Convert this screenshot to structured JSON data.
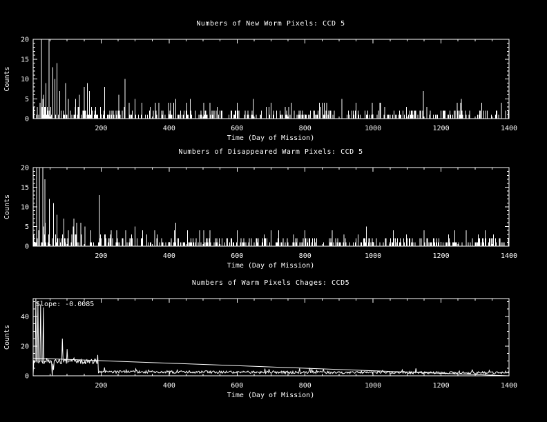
{
  "window": {
    "background_color": "#000000",
    "foreground_color": "#ffffff"
  },
  "chart_data": [
    {
      "type": "bar",
      "title": "Numbers of New Worm Pixels: CCD 5",
      "xlabel": "Time (Day of Mission)",
      "ylabel": "Counts",
      "xlim": [
        0,
        1400
      ],
      "ylim": [
        0,
        20
      ],
      "xticks": [
        200,
        400,
        600,
        800,
        1000,
        1200,
        1400
      ],
      "yticks": [
        0,
        5,
        10,
        15,
        20
      ],
      "x_minor_step": 50,
      "y_minor_step": 1,
      "grid": false,
      "legend": "none",
      "major_spikes": [
        [
          24,
          22
        ],
        [
          47,
          22
        ],
        [
          38,
          9
        ],
        [
          58,
          13
        ],
        [
          64,
          10
        ],
        [
          70,
          14
        ],
        [
          78,
          7
        ],
        [
          95,
          9
        ],
        [
          104,
          5
        ],
        [
          125,
          5
        ],
        [
          150,
          8
        ],
        [
          160,
          9
        ],
        [
          166,
          7
        ],
        [
          210,
          8
        ],
        [
          252,
          6
        ],
        [
          270,
          10
        ],
        [
          300,
          5
        ],
        [
          360,
          4
        ],
        [
          420,
          5
        ],
        [
          462,
          5
        ],
        [
          520,
          4
        ],
        [
          600,
          4
        ],
        [
          648,
          5
        ],
        [
          700,
          4
        ],
        [
          760,
          4
        ],
        [
          850,
          4
        ],
        [
          908,
          5
        ],
        [
          950,
          4
        ],
        [
          1020,
          4
        ],
        [
          1148,
          7
        ],
        [
          1260,
          5
        ],
        [
          1320,
          4
        ]
      ],
      "noise": {
        "seed": 101,
        "early": {
          "until": 200,
          "p_nonzero": 0.6,
          "max": 3.6,
          "p_spike": 0.1,
          "spike_min": 2,
          "spike_max": 6
        },
        "late": {
          "until": 1400,
          "p_nonzero": 0.5,
          "max": 2.4,
          "p_spike": 0.05,
          "spike_min": 2,
          "spike_max": 4.4
        }
      }
    },
    {
      "type": "bar",
      "title": "Numbers of Disappeared Warm Pixels: CCD 5",
      "xlabel": "Time (Day of Mission)",
      "ylabel": "Counts",
      "xlim": [
        0,
        1400
      ],
      "ylim": [
        0,
        20
      ],
      "xticks": [
        200,
        400,
        600,
        800,
        1000,
        1200,
        1400
      ],
      "yticks": [
        0,
        5,
        10,
        15,
        20
      ],
      "x_minor_step": 50,
      "y_minor_step": 1,
      "grid": false,
      "legend": "none",
      "major_spikes": [
        [
          10,
          22
        ],
        [
          18,
          22
        ],
        [
          28,
          22
        ],
        [
          35,
          17
        ],
        [
          48,
          12
        ],
        [
          60,
          11
        ],
        [
          70,
          8
        ],
        [
          90,
          7
        ],
        [
          120,
          7
        ],
        [
          140,
          6
        ],
        [
          152,
          5
        ],
        [
          195,
          13
        ],
        [
          230,
          4
        ],
        [
          300,
          5
        ],
        [
          358,
          4
        ],
        [
          420,
          6
        ],
        [
          520,
          4
        ],
        [
          600,
          4
        ],
        [
          700,
          4
        ],
        [
          800,
          4
        ],
        [
          880,
          4
        ],
        [
          980,
          5
        ],
        [
          1060,
          4
        ],
        [
          1150,
          4
        ],
        [
          1240,
          4
        ],
        [
          1330,
          4
        ]
      ],
      "noise": {
        "seed": 202,
        "early": {
          "until": 200,
          "p_nonzero": 0.6,
          "max": 3.6,
          "p_spike": 0.1,
          "spike_min": 2,
          "spike_max": 6
        },
        "late": {
          "until": 1400,
          "p_nonzero": 0.5,
          "max": 2.4,
          "p_spike": 0.05,
          "spike_min": 2,
          "spike_max": 4.2
        }
      }
    },
    {
      "type": "line",
      "title": "Numbers of Warm Pixels Chages: CCD5",
      "xlabel": "Time (Day of Mission)",
      "ylabel": "Counts",
      "xlim": [
        0,
        1400
      ],
      "ylim": [
        0,
        52
      ],
      "xticks": [
        200,
        400,
        600,
        800,
        1000,
        1200,
        1400
      ],
      "yticks": [
        0,
        20,
        40
      ],
      "x_minor_step": 50,
      "y_minor_step": 5,
      "grid": false,
      "legend": "none",
      "fit": {
        "slope": -0.0085,
        "intercept": 11.9,
        "label": "Slope: -0.0085"
      },
      "major_spikes": [
        [
          0,
          1
        ],
        [
          8,
          55
        ],
        [
          14,
          50
        ],
        [
          22,
          48
        ],
        [
          30,
          46
        ],
        [
          40,
          12
        ],
        [
          55,
          0
        ],
        [
          60,
          4
        ],
        [
          85,
          25
        ],
        [
          100,
          18
        ],
        [
          120,
          12
        ],
        [
          190,
          14
        ],
        [
          200,
          3
        ]
      ],
      "noise": {
        "seed": 303,
        "early_until": 190,
        "early_base": 9.5,
        "early_amp": 2.6,
        "late_base": 2.7,
        "late_slope": 0.0006,
        "late_amp": 1.7,
        "p_bump": 0.05,
        "bump_max": 2.5
      }
    }
  ]
}
